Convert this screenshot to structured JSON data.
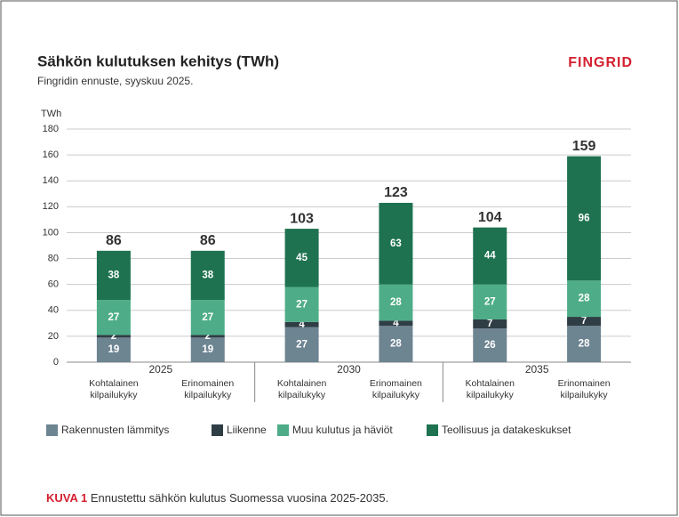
{
  "chart_data": {
    "type": "stacked_bar",
    "title": "Sähkön kulutuksen kehitys (TWh)",
    "subtitle": "Fingridin ennuste, syyskuu 2025.",
    "logo": "FINGRID",
    "y_label": "TWh",
    "categories": [
      "Kohtalainen kilpailukyky",
      "Erinomainen kilpailukyky",
      "Kohtalainen kilpailukyky",
      "Erinomainen kilpailukyky",
      "Kohtalainen kilpailukyky",
      "Erinomainen kilpailukyky"
    ],
    "groups": [
      "2025",
      "2030",
      "2035"
    ],
    "series": [
      {
        "name": "Rakennusten lämmitys",
        "color": "#6d8491",
        "values": [
          19,
          19,
          27,
          28,
          26,
          28
        ]
      },
      {
        "name": "Liikenne",
        "color": "#2f3d45",
        "values": [
          2,
          2,
          4,
          4,
          7,
          7
        ]
      },
      {
        "name": "Muu kulutus ja häviöt",
        "color": "#4ead88",
        "values": [
          27,
          27,
          27,
          28,
          27,
          28
        ]
      },
      {
        "name": "Teollisuus ja datakeskukset",
        "color": "#1e7250",
        "values": [
          38,
          38,
          45,
          63,
          44,
          96
        ]
      }
    ],
    "totals": [
      86,
      86,
      103,
      123,
      104,
      159
    ],
    "ylim": [
      0,
      180
    ],
    "yticks": [
      0,
      20,
      40,
      60,
      80,
      100,
      120,
      140,
      160,
      180
    ],
    "grid": true,
    "caption_label": "KUVA 1",
    "caption": "Ennustettu sähkön kulutus Suomessa vuosina 2025-2035."
  }
}
